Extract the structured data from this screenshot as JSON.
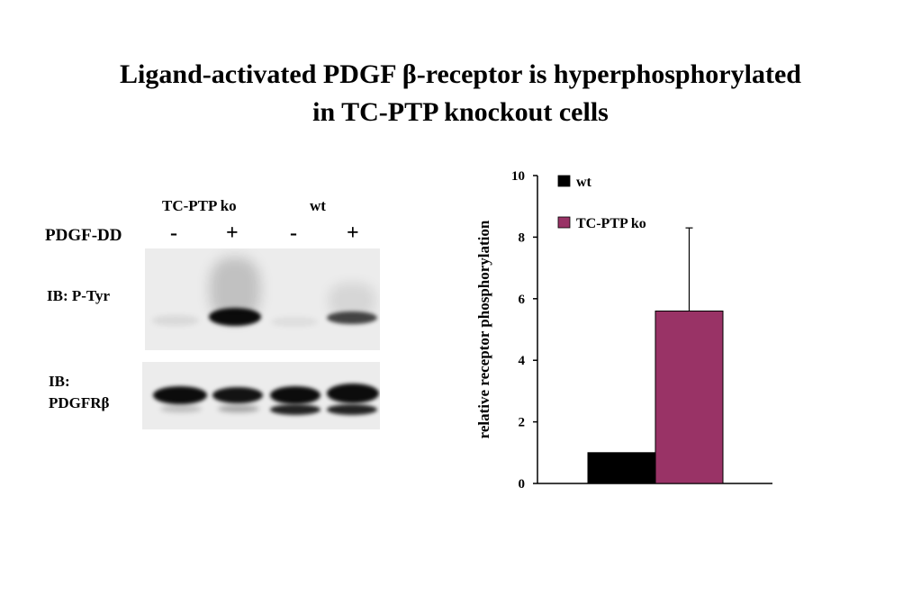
{
  "title": {
    "line1": "Ligand-activated PDGF β-receptor is hyperphosphorylated",
    "line2": "in TC-PTP knockout cells"
  },
  "blot": {
    "groups": [
      "TC-PTP ko",
      "wt"
    ],
    "treatment_label": "PDGF-DD",
    "lanes": [
      "-",
      "+",
      "-",
      "+"
    ],
    "panels": [
      {
        "label_lines": [
          "IB: P-Tyr"
        ]
      },
      {
        "label_lines": [
          "IB:",
          "PDGFRβ"
        ]
      }
    ]
  },
  "chart_data": {
    "type": "bar",
    "categories": [
      ""
    ],
    "series": [
      {
        "name": "wt",
        "values": [
          1.0
        ],
        "color": "#000000"
      },
      {
        "name": "TC-PTP ko",
        "values": [
          5.6
        ],
        "error": [
          2.7
        ],
        "color": "#993366"
      }
    ],
    "ylabel": "relative receptor phosphorylation",
    "ylim": [
      0,
      10
    ],
    "yticks": [
      0,
      2,
      4,
      6,
      8,
      10
    ],
    "grid": false,
    "legend": "top-left"
  }
}
